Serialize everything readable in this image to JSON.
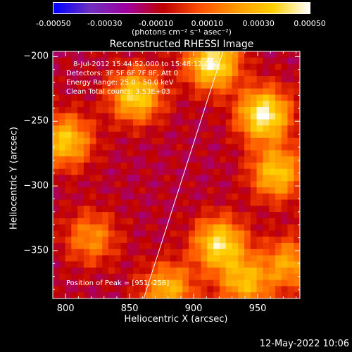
{
  "chart_data": {
    "type": "heatmap",
    "title": "Reconstructed RHESSI Image",
    "xlabel": "Heliocentric X (arcsec)",
    "ylabel": "Heliocentric Y (arcsec)",
    "xlim": [
      790,
      983
    ],
    "ylim": [
      -387,
      -196
    ],
    "x_ticks": [
      800,
      850,
      900,
      950
    ],
    "y_ticks": [
      -200,
      -250,
      -300,
      -350
    ],
    "colorbar": {
      "ticks": [
        "-0.00050",
        "-0.00030",
        "-0.00010",
        "0.00010",
        "0.00030",
        "0.00050"
      ],
      "range": [
        -0.0005,
        0.0005
      ],
      "unit_label": "(photons cm⁻² s⁻¹ asec⁻²)",
      "colors": [
        "#0000ff",
        "#7030c0",
        "#a000a0",
        "#c00000",
        "#ff5000",
        "#ff9a00",
        "#ffd000",
        "#ffffff"
      ]
    },
    "annotations": [
      "8-Jul-2012 15:44:52.000 to 15:48:12.000",
      "Detectors: 3F 5F 6F 7F 8F, Att 0",
      "Energy Range: 25.0 - 50.0 keV",
      "Clean    Total counts: 3.53E+03"
    ],
    "peak_label": "Position of Peak = [951,-258]",
    "limb_line": [
      [
        861,
        -387
      ],
      [
        923,
        -196
      ]
    ],
    "bright_regions": [
      {
        "x": 915,
        "y": -205,
        "intensity": 0.00048
      },
      {
        "x": 855,
        "y": -230,
        "intensity": 0.0004
      },
      {
        "x": 800,
        "y": -265,
        "intensity": 0.00035
      },
      {
        "x": 955,
        "y": -245,
        "intensity": 0.0005
      },
      {
        "x": 965,
        "y": -290,
        "intensity": 0.00035
      },
      {
        "x": 920,
        "y": -345,
        "intensity": 0.00042
      },
      {
        "x": 975,
        "y": -360,
        "intensity": 0.00025
      },
      {
        "x": 880,
        "y": -380,
        "intensity": 0.0003
      },
      {
        "x": 820,
        "y": -340,
        "intensity": 0.0002
      },
      {
        "x": 940,
        "y": -375,
        "intensity": 0.0003
      }
    ]
  },
  "footer": {
    "date": "12-May-2022 10:06"
  }
}
